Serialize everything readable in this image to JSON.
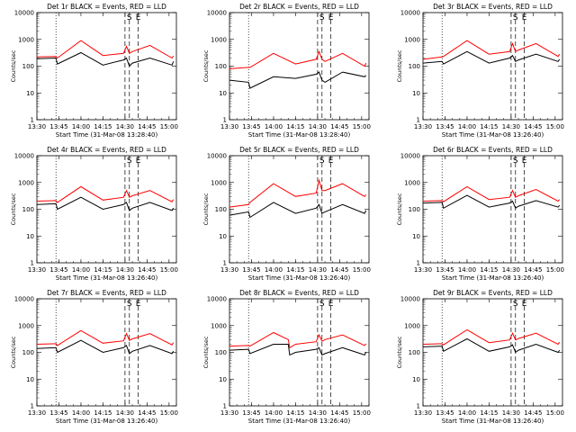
{
  "colors": {
    "events": "#000000",
    "lld": "#ff0000",
    "axes": "#000000",
    "background": "#ffffff"
  },
  "chart_data": [
    {
      "type": "line",
      "title": "Det 1r BLACK = Events, RED = LLD",
      "xlabel": "Start Time (31-Mar-08 13:28:40)",
      "ylabel": "Counts/sec",
      "yscale": "log",
      "ylim": [
        1,
        10000
      ],
      "xlim": [
        "13:30",
        "15:05"
      ],
      "xticks": [
        "13:30",
        "13:45",
        "14:00",
        "14:15",
        "14:30",
        "14:45",
        "15:00"
      ],
      "yticks": [
        "1",
        "10",
        "100",
        "1000",
        "10000"
      ],
      "markers": [
        {
          "time": "13:43",
          "style": "dotted",
          "label": ""
        },
        {
          "time": "14:30",
          "style": "dashed",
          "label": ""
        },
        {
          "time": "14:33",
          "style": "dashed",
          "label": "S"
        },
        {
          "time": "14:39",
          "style": "dashed",
          "label": "E"
        }
      ],
      "series": [
        {
          "name": "Events",
          "color": "black",
          "x": [
            "13:30",
            "13:43",
            "13:44",
            "14:00",
            "14:15",
            "14:29",
            "14:31",
            "14:33",
            "14:35",
            "14:47",
            "15:02",
            "15:03"
          ],
          "y": [
            190,
            200,
            120,
            320,
            110,
            170,
            200,
            100,
            130,
            200,
            110,
            150
          ]
        },
        {
          "name": "LLD",
          "color": "red",
          "x": [
            "13:30",
            "13:43",
            "13:44",
            "14:00",
            "14:15",
            "14:29",
            "14:31",
            "14:33",
            "14:35",
            "14:47",
            "15:02",
            "15:03"
          ],
          "y": [
            220,
            230,
            200,
            900,
            250,
            300,
            550,
            300,
            350,
            600,
            200,
            240
          ]
        }
      ]
    },
    {
      "type": "line",
      "title": "Det 2r BLACK = Events, RED = LLD",
      "xlabel": "Start Time (31-Mar-08 13:28:40)",
      "ylabel": "Counts/sec",
      "yscale": "log",
      "ylim": [
        1,
        10000
      ],
      "xlim": [
        "13:30",
        "15:05"
      ],
      "xticks": [
        "13:30",
        "13:45",
        "14:00",
        "14:15",
        "14:30",
        "14:45",
        "15:00"
      ],
      "yticks": [
        "1",
        "10",
        "100",
        "1000",
        "10000"
      ],
      "markers": [
        {
          "time": "13:43",
          "style": "dotted",
          "label": ""
        },
        {
          "time": "14:30",
          "style": "dashed",
          "label": ""
        },
        {
          "time": "14:33",
          "style": "dashed",
          "label": "S"
        },
        {
          "time": "14:39",
          "style": "dashed",
          "label": "E"
        }
      ],
      "series": [
        {
          "name": "Events",
          "color": "black",
          "x": [
            "13:30",
            "13:43",
            "13:44",
            "14:00",
            "14:15",
            "14:29",
            "14:31",
            "14:33",
            "14:35",
            "14:47",
            "15:02",
            "15:03"
          ],
          "y": [
            30,
            25,
            15,
            40,
            35,
            50,
            60,
            30,
            25,
            60,
            40,
            45
          ]
        },
        {
          "name": "LLD",
          "color": "red",
          "x": [
            "13:30",
            "13:43",
            "13:44",
            "14:00",
            "14:15",
            "14:29",
            "14:31",
            "14:33",
            "14:35",
            "14:47",
            "15:02",
            "15:03"
          ],
          "y": [
            80,
            90,
            90,
            300,
            120,
            180,
            350,
            180,
            150,
            300,
            100,
            130
          ]
        }
      ]
    },
    {
      "type": "line",
      "title": "Det 3r BLACK = Events, RED = LLD",
      "xlabel": "Start Time (31-Mar-08 13:26:40)",
      "ylabel": "Counts/sec",
      "yscale": "log",
      "ylim": [
        1,
        10000
      ],
      "xlim": [
        "13:30",
        "15:05"
      ],
      "xticks": [
        "13:30",
        "13:45",
        "14:00",
        "14:15",
        "14:30",
        "14:45",
        "15:00"
      ],
      "yticks": [
        "1",
        "10",
        "100",
        "1000",
        "10000"
      ],
      "markers": [
        {
          "time": "13:43",
          "style": "dotted",
          "label": ""
        },
        {
          "time": "14:30",
          "style": "dashed",
          "label": ""
        },
        {
          "time": "14:33",
          "style": "dashed",
          "label": "S"
        },
        {
          "time": "14:39",
          "style": "dashed",
          "label": "E"
        }
      ],
      "series": [
        {
          "name": "Events",
          "color": "black",
          "x": [
            "13:30",
            "13:43",
            "13:44",
            "14:00",
            "14:15",
            "14:29",
            "14:31",
            "14:33",
            "14:35",
            "14:47",
            "15:02",
            "15:03"
          ],
          "y": [
            130,
            150,
            120,
            350,
            130,
            200,
            250,
            150,
            170,
            280,
            150,
            180
          ]
        },
        {
          "name": "LLD",
          "color": "red",
          "x": [
            "13:30",
            "13:43",
            "13:44",
            "14:00",
            "14:15",
            "14:29",
            "14:31",
            "14:33",
            "14:35",
            "14:47",
            "15:02",
            "15:03"
          ],
          "y": [
            180,
            220,
            230,
            900,
            280,
            350,
            700,
            350,
            400,
            700,
            230,
            280
          ]
        }
      ]
    },
    {
      "type": "line",
      "title": "Det 4r BLACK = Events, RED = LLD",
      "xlabel": "Start Time (31-Mar-08 13:26:40)",
      "ylabel": "Counts/sec",
      "yscale": "log",
      "ylim": [
        1,
        10000
      ],
      "xlim": [
        "13:30",
        "15:05"
      ],
      "xticks": [
        "13:30",
        "13:45",
        "14:00",
        "14:15",
        "14:30",
        "14:45",
        "15:00"
      ],
      "yticks": [
        "1",
        "10",
        "100",
        "1000",
        "10000"
      ],
      "markers": [
        {
          "time": "13:43",
          "style": "dotted",
          "label": ""
        },
        {
          "time": "14:30",
          "style": "dashed",
          "label": ""
        },
        {
          "time": "14:33",
          "style": "dashed",
          "label": "S"
        },
        {
          "time": "14:39",
          "style": "dashed",
          "label": "E"
        }
      ],
      "series": [
        {
          "name": "Events",
          "color": "black",
          "x": [
            "13:30",
            "13:43",
            "13:44",
            "14:00",
            "14:15",
            "14:29",
            "14:31",
            "14:33",
            "14:35",
            "14:47",
            "15:02",
            "15:03"
          ],
          "y": [
            150,
            160,
            100,
            280,
            100,
            150,
            180,
            90,
            110,
            180,
            90,
            110
          ]
        },
        {
          "name": "LLD",
          "color": "red",
          "x": [
            "13:30",
            "13:43",
            "13:44",
            "14:00",
            "14:15",
            "14:29",
            "14:31",
            "14:33",
            "14:35",
            "14:47",
            "15:02",
            "15:03"
          ],
          "y": [
            200,
            210,
            180,
            700,
            220,
            280,
            500,
            280,
            320,
            500,
            190,
            230
          ]
        }
      ]
    },
    {
      "type": "line",
      "title": "Det 5r BLACK = Events, RED = LLD",
      "xlabel": "Start Time (31-Mar-08 13:26:40)",
      "ylabel": "Counts/sec",
      "yscale": "log",
      "ylim": [
        1,
        10000
      ],
      "xlim": [
        "13:30",
        "15:05"
      ],
      "xticks": [
        "13:30",
        "13:45",
        "14:00",
        "14:15",
        "14:30",
        "14:45",
        "15:00"
      ],
      "yticks": [
        "1",
        "10",
        "100",
        "1000",
        "10000"
      ],
      "markers": [
        {
          "time": "13:43",
          "style": "dotted",
          "label": ""
        },
        {
          "time": "14:30",
          "style": "dashed",
          "label": ""
        },
        {
          "time": "14:33",
          "style": "dashed",
          "label": "S"
        },
        {
          "time": "14:39",
          "style": "dashed",
          "label": "E"
        }
      ],
      "series": [
        {
          "name": "Events",
          "color": "black",
          "x": [
            "13:30",
            "13:43",
            "13:44",
            "14:00",
            "14:15",
            "14:29",
            "14:31",
            "14:33",
            "14:35",
            "14:47",
            "15:02",
            "15:03"
          ],
          "y": [
            60,
            80,
            50,
            180,
            70,
            110,
            150,
            70,
            80,
            150,
            70,
            90
          ]
        },
        {
          "name": "LLD",
          "color": "red",
          "x": [
            "13:30",
            "13:43",
            "13:44",
            "14:00",
            "14:15",
            "14:29",
            "14:31",
            "14:33",
            "14:35",
            "14:47",
            "15:02",
            "15:03"
          ],
          "y": [
            120,
            150,
            180,
            900,
            300,
            400,
            1200,
            500,
            500,
            900,
            300,
            350
          ]
        }
      ]
    },
    {
      "type": "line",
      "title": "Det 6r BLACK = Events, RED = LLD",
      "xlabel": "Start Time (31-Mar-08 13:26:40)",
      "ylabel": "Counts/sec",
      "yscale": "log",
      "ylim": [
        1,
        10000
      ],
      "xlim": [
        "13:30",
        "15:05"
      ],
      "xticks": [
        "13:30",
        "13:45",
        "14:00",
        "14:15",
        "14:30",
        "14:45",
        "15:00"
      ],
      "yticks": [
        "1",
        "10",
        "100",
        "1000",
        "10000"
      ],
      "markers": [
        {
          "time": "13:43",
          "style": "dotted",
          "label": ""
        },
        {
          "time": "14:30",
          "style": "dashed",
          "label": ""
        },
        {
          "time": "14:33",
          "style": "dashed",
          "label": "S"
        },
        {
          "time": "14:39",
          "style": "dashed",
          "label": "E"
        }
      ],
      "series": [
        {
          "name": "Events",
          "color": "black",
          "x": [
            "13:30",
            "13:43",
            "13:44",
            "14:00",
            "14:15",
            "14:29",
            "14:31",
            "14:33",
            "14:35",
            "14:47",
            "15:02",
            "15:03"
          ],
          "y": [
            170,
            180,
            110,
            330,
            120,
            170,
            200,
            110,
            130,
            210,
            120,
            140
          ]
        },
        {
          "name": "LLD",
          "color": "red",
          "x": [
            "13:30",
            "13:43",
            "13:44",
            "14:00",
            "14:15",
            "14:29",
            "14:31",
            "14:33",
            "14:35",
            "14:47",
            "15:02",
            "15:03"
          ],
          "y": [
            200,
            210,
            190,
            700,
            230,
            280,
            500,
            280,
            320,
            550,
            200,
            230
          ]
        }
      ]
    },
    {
      "type": "line",
      "title": "Det 7r BLACK = Events, RED = LLD",
      "xlabel": "Start Time (31-Mar-08 13:26:40)",
      "ylabel": "Counts/sec",
      "yscale": "log",
      "ylim": [
        1,
        10000
      ],
      "xlim": [
        "13:30",
        "15:05"
      ],
      "xticks": [
        "13:30",
        "13:45",
        "14:00",
        "14:15",
        "14:30",
        "14:45",
        "15:00"
      ],
      "yticks": [
        "1",
        "10",
        "100",
        "1000",
        "10000"
      ],
      "markers": [
        {
          "time": "13:43",
          "style": "dotted",
          "label": ""
        },
        {
          "time": "14:30",
          "style": "dashed",
          "label": ""
        },
        {
          "time": "14:33",
          "style": "dashed",
          "label": "S"
        },
        {
          "time": "14:39",
          "style": "dashed",
          "label": "E"
        }
      ],
      "series": [
        {
          "name": "Events",
          "color": "black",
          "x": [
            "13:30",
            "13:43",
            "13:44",
            "14:00",
            "14:15",
            "14:29",
            "14:31",
            "14:33",
            "14:35",
            "14:47",
            "15:02",
            "15:03"
          ],
          "y": [
            140,
            150,
            100,
            280,
            100,
            150,
            180,
            90,
            110,
            180,
            90,
            110
          ]
        },
        {
          "name": "LLD",
          "color": "red",
          "x": [
            "13:30",
            "13:43",
            "13:44",
            "14:00",
            "14:15",
            "14:29",
            "14:31",
            "14:33",
            "14:35",
            "14:47",
            "15:02",
            "15:03"
          ],
          "y": [
            200,
            210,
            180,
            650,
            220,
            270,
            500,
            280,
            320,
            500,
            190,
            230
          ]
        }
      ]
    },
    {
      "type": "line",
      "title": "Det 8r BLACK = Events, RED = LLD",
      "xlabel": "Start Time (31-Mar-08 13:26:40)",
      "ylabel": "Counts/sec",
      "yscale": "log",
      "ylim": [
        1,
        10000
      ],
      "xlim": [
        "13:30",
        "15:05"
      ],
      "xticks": [
        "13:30",
        "13:45",
        "14:00",
        "14:15",
        "14:30",
        "14:45",
        "15:00"
      ],
      "yticks": [
        "1",
        "10",
        "100",
        "1000",
        "10000"
      ],
      "markers": [
        {
          "time": "13:43",
          "style": "dotted",
          "label": ""
        },
        {
          "time": "14:30",
          "style": "dashed",
          "label": ""
        },
        {
          "time": "14:33",
          "style": "dashed",
          "label": "S"
        },
        {
          "time": "14:39",
          "style": "dashed",
          "label": "E"
        }
      ],
      "series": [
        {
          "name": "Events",
          "color": "black",
          "x": [
            "13:30",
            "13:43",
            "13:44",
            "14:00",
            "14:10",
            "14:11",
            "14:15",
            "14:29",
            "14:31",
            "14:33",
            "14:35",
            "14:47",
            "15:02",
            "15:03"
          ],
          "y": [
            120,
            130,
            90,
            200,
            200,
            80,
            100,
            130,
            150,
            80,
            90,
            150,
            80,
            100
          ]
        },
        {
          "name": "LLD",
          "color": "red",
          "x": [
            "13:30",
            "13:43",
            "13:44",
            "14:00",
            "14:10",
            "14:11",
            "14:15",
            "14:29",
            "14:31",
            "14:33",
            "14:35",
            "14:47",
            "15:02",
            "15:03"
          ],
          "y": [
            170,
            180,
            170,
            550,
            300,
            150,
            200,
            250,
            450,
            260,
            300,
            450,
            180,
            210
          ]
        }
      ]
    },
    {
      "type": "line",
      "title": "Det 9r BLACK = Events, RED = LLD",
      "xlabel": "Start Time (31-Mar-08 13:26:40)",
      "ylabel": "Counts/sec",
      "yscale": "log",
      "ylim": [
        1,
        10000
      ],
      "xlim": [
        "13:30",
        "15:05"
      ],
      "xticks": [
        "13:30",
        "13:45",
        "14:00",
        "14:15",
        "14:30",
        "14:45",
        "15:00"
      ],
      "yticks": [
        "1",
        "10",
        "100",
        "1000",
        "10000"
      ],
      "markers": [
        {
          "time": "13:43",
          "style": "dotted",
          "label": ""
        },
        {
          "time": "14:30",
          "style": "dashed",
          "label": ""
        },
        {
          "time": "14:33",
          "style": "dashed",
          "label": "S"
        },
        {
          "time": "14:39",
          "style": "dashed",
          "label": "E"
        }
      ],
      "series": [
        {
          "name": "Events",
          "color": "black",
          "x": [
            "13:30",
            "13:43",
            "13:44",
            "14:00",
            "14:15",
            "14:29",
            "14:31",
            "14:33",
            "14:35",
            "14:47",
            "15:02",
            "15:03"
          ],
          "y": [
            160,
            170,
            110,
            320,
            110,
            160,
            190,
            100,
            120,
            200,
            100,
            120
          ]
        },
        {
          "name": "LLD",
          "color": "red",
          "x": [
            "13:30",
            "13:43",
            "13:44",
            "14:00",
            "14:15",
            "14:29",
            "14:31",
            "14:33",
            "14:35",
            "14:47",
            "15:02",
            "15:03"
          ],
          "y": [
            200,
            210,
            190,
            700,
            230,
            290,
            520,
            290,
            330,
            520,
            200,
            240
          ]
        }
      ]
    }
  ]
}
